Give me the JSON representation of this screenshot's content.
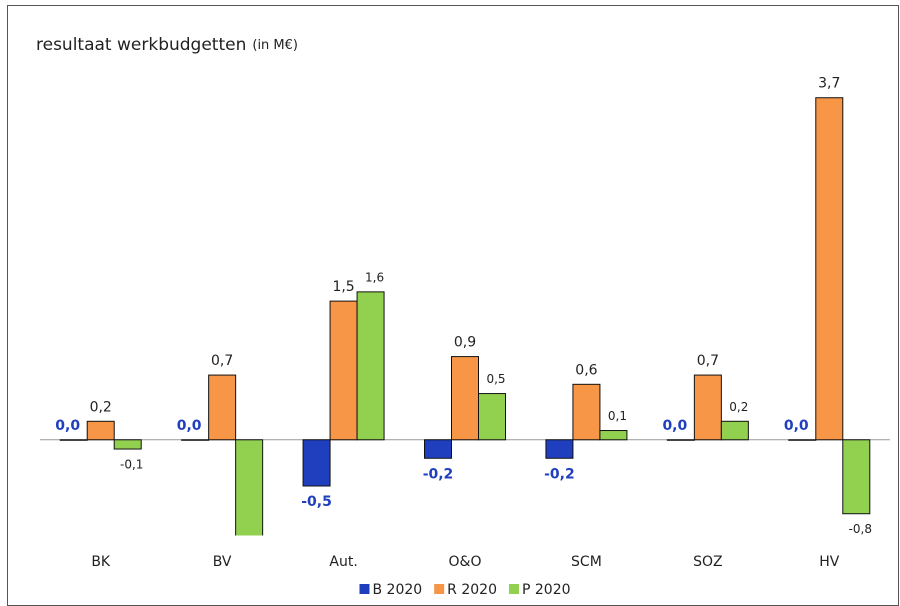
{
  "chart_data": {
    "type": "bar",
    "title": "resultaat werkbudgetten",
    "title_unit": "(in M€)",
    "categories": [
      "BK",
      "BV",
      "Aut.",
      "O&O",
      "SCM",
      "SOZ",
      "HV"
    ],
    "series": [
      {
        "name": "B 2020",
        "color": "#1f3fbf",
        "label_color": "#1f3fbf",
        "values": [
          0,
          0,
          -0.5,
          -0.2,
          -0.2,
          0,
          0
        ],
        "value_labels": [
          "0,0",
          "0,0",
          "-0,5",
          "-0,2",
          "-0,2",
          "0,0",
          "0,0"
        ]
      },
      {
        "name": "R 2020",
        "color": "#f79646",
        "label_color": "#222222",
        "values": [
          0.2,
          0.7,
          1.5,
          0.9,
          0.6,
          0.7,
          3.7
        ],
        "value_labels": [
          "0,2",
          "0,7",
          "1,5",
          "0,9",
          "0,6",
          "0,7",
          "3,7"
        ]
      },
      {
        "name": "P 2020",
        "color": "#92d050",
        "label_color": "#222222",
        "values": [
          -0.1,
          -1.2,
          1.6,
          0.5,
          0.1,
          0.2,
          -0.8
        ],
        "value_labels": [
          "-0,1",
          null,
          "1,6",
          "0,5",
          "0,1",
          "0,2",
          "-0,8"
        ]
      }
    ],
    "ylim": [
      -1.03,
      4.0
    ],
    "grid": false,
    "legend": "bottom"
  }
}
